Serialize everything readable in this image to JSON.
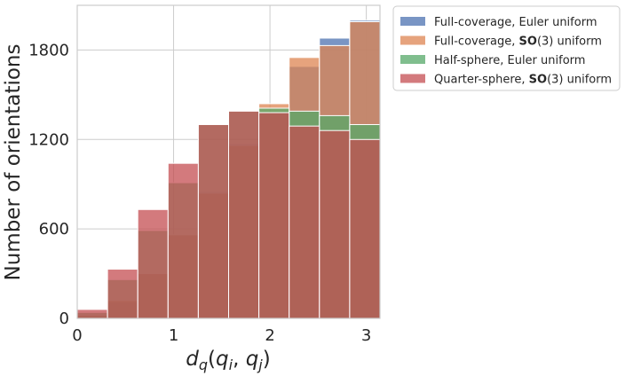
{
  "chart_data": {
    "type": "bar",
    "title": "",
    "xlabel": "d_q(q_i, q_j)",
    "ylabel": "Number of orientations",
    "xlim": [
      0,
      3.1416
    ],
    "ylim": [
      0,
      2100
    ],
    "xticks": [
      0,
      1,
      2,
      3
    ],
    "yticks": [
      0,
      600,
      1200,
      1800
    ],
    "grid": true,
    "legend_position": "outside-top-right",
    "bin_edges": [
      0,
      0.3142,
      0.6283,
      0.9425,
      1.2566,
      1.5708,
      1.885,
      2.1991,
      2.5133,
      2.8274,
      3.1416
    ],
    "series": [
      {
        "name": "Full-coverage, Euler uniform",
        "prefix": "Full-coverage, Euler uniform",
        "bold": "",
        "suffix": "",
        "color": "#4C72B0",
        "values": [
          20,
          110,
          300,
          560,
          850,
          1170,
          1380,
          1690,
          1880,
          2000
        ]
      },
      {
        "name": "Full-coverage, SO(3) uniform",
        "prefix": "Full-coverage, ",
        "bold": "SO",
        "suffix": "(3) uniform",
        "color": "#DD8452",
        "values": [
          20,
          120,
          300,
          560,
          840,
          1160,
          1440,
          1750,
          1830,
          1990
        ]
      },
      {
        "name": "Half-sphere, Euler uniform",
        "prefix": "Half-sphere, Euler uniform",
        "bold": "",
        "suffix": "",
        "color": "#55A868",
        "values": [
          40,
          260,
          590,
          910,
          1300,
          1390,
          1410,
          1390,
          1360,
          1300
        ]
      },
      {
        "name": "Quarter-sphere, SO(3) uniform",
        "prefix": "Quarter-sphere, ",
        "bold": "SO",
        "suffix": "(3) uniform",
        "color": "#C44E52",
        "values": [
          60,
          330,
          730,
          1040,
          1300,
          1390,
          1380,
          1290,
          1260,
          1200
        ]
      }
    ]
  }
}
